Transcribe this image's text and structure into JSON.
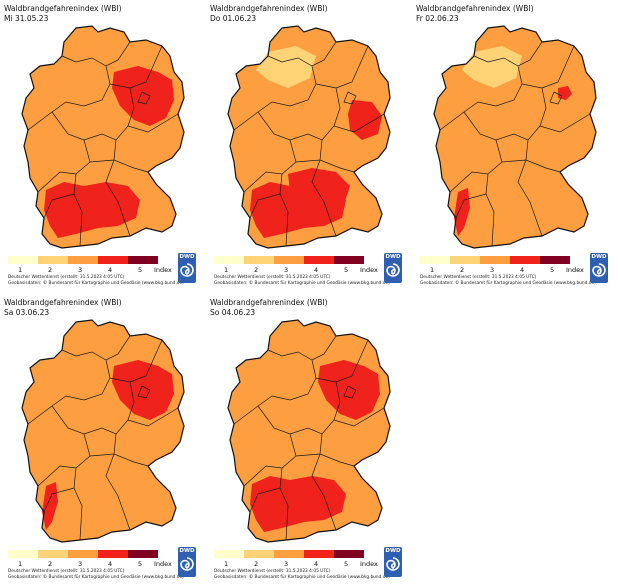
{
  "index_name": "Waldbrandgefahrenindex (WBI)",
  "legend": {
    "labels": [
      "1",
      "2",
      "3",
      "4",
      "5"
    ],
    "unit": "Index",
    "colors": [
      "#ffffcc",
      "#fed376",
      "#fd9f40",
      "#f0221c",
      "#7f0020"
    ]
  },
  "footer": {
    "line1": "Deutscher Wetterdienst (erstellt: 31.5.2023 4:05 UTC)",
    "line2": "Geobasisdaten: © Bundesamt für Kartographie und Geodäsie (www.bkg.bund.de)"
  },
  "logo": {
    "text": "DWD",
    "color": "#2f5fb0",
    "icon": "dwd-swirl-icon"
  },
  "panels": [
    {
      "date": "Mi 31.05.23",
      "base_level": 3,
      "hot_regions": [
        "northeast",
        "southwest"
      ]
    },
    {
      "date": "Do 01.06.23",
      "base_level": 3,
      "hot_regions": [
        "east",
        "south-central",
        "southwest"
      ]
    },
    {
      "date": "Fr 02.06.23",
      "base_level": 3,
      "hot_regions": [
        "berlin",
        "southwest-rhine"
      ]
    },
    {
      "date": "Sa 03.06.23",
      "base_level": 3,
      "hot_regions": [
        "northeast",
        "southwest-rhine"
      ]
    },
    {
      "date": "So 04.06.23",
      "base_level": 3,
      "hot_regions": [
        "northeast",
        "southwest"
      ]
    }
  ]
}
